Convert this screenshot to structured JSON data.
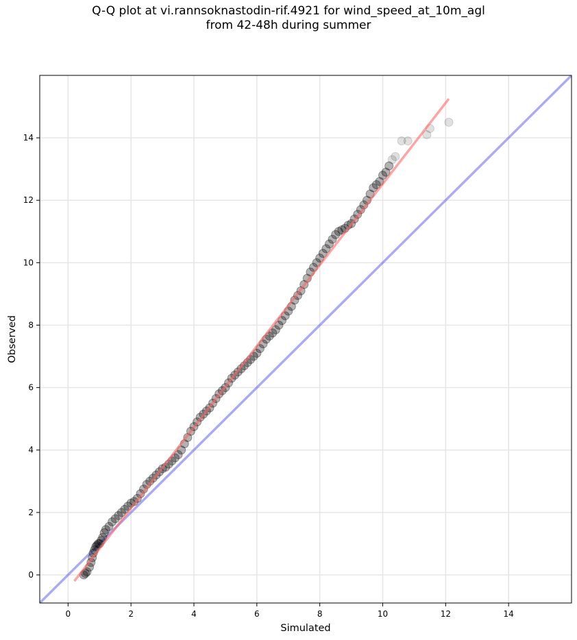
{
  "chart_data": {
    "type": "scatter",
    "title_line1": "Q-Q plot at vi.rannsoknastodin-rif.4921 for wind_speed_at_10m_agl",
    "title_line2": "from 42-48h during summer",
    "xlabel": "Simulated",
    "ylabel": "Observed",
    "xlim": [
      -0.9,
      16.0
    ],
    "ylim": [
      -0.9,
      16.0
    ],
    "xticks": [
      0,
      2,
      4,
      6,
      8,
      10,
      12,
      14
    ],
    "yticks": [
      0,
      2,
      4,
      6,
      8,
      10,
      12,
      14
    ],
    "grid": true,
    "colors": {
      "points": "#000000",
      "fit_line": "#ff6666",
      "identity_line": "#5555ee",
      "grid": "#e6e6e6"
    },
    "quantile_points": {
      "x": [
        0.5,
        0.55,
        0.6,
        0.68,
        0.73,
        0.77,
        0.8,
        0.84,
        0.88,
        0.92,
        0.96,
        1.0,
        1.05,
        1.1,
        1.15,
        1.2,
        1.3,
        1.4,
        1.5,
        1.6,
        1.7,
        1.8,
        1.9,
        2.0,
        2.1,
        2.2,
        2.3,
        2.4,
        2.5,
        2.6,
        2.7,
        2.8,
        2.9,
        3.0,
        3.1,
        3.2,
        3.3,
        3.4,
        3.5,
        3.6,
        3.7,
        3.8,
        3.9,
        4.0,
        4.1,
        4.2,
        4.3,
        4.4,
        4.5,
        4.6,
        4.7,
        4.8,
        4.9,
        5.0,
        5.1,
        5.2,
        5.3,
        5.4,
        5.5,
        5.6,
        5.7,
        5.8,
        5.9,
        6.0,
        6.1,
        6.2,
        6.3,
        6.4,
        6.5,
        6.6,
        6.7,
        6.8,
        6.9,
        7.0,
        7.1,
        7.2,
        7.3,
        7.4,
        7.5,
        7.6,
        7.7,
        7.8,
        7.9,
        8.0,
        8.1,
        8.2,
        8.3,
        8.4,
        8.5,
        8.6,
        8.7,
        8.8,
        8.9,
        9.0,
        9.1,
        9.2,
        9.3,
        9.4,
        9.5,
        9.6,
        9.7,
        9.8,
        9.9,
        10.0,
        10.1,
        10.2,
        10.3,
        10.4,
        10.6,
        10.8,
        11.4,
        11.5,
        12.1
      ],
      "y": [
        0.0,
        0.05,
        0.1,
        0.25,
        0.4,
        0.55,
        0.7,
        0.8,
        0.9,
        0.95,
        1.0,
        1.0,
        1.1,
        1.2,
        1.35,
        1.45,
        1.55,
        1.7,
        1.8,
        1.9,
        2.0,
        2.1,
        2.2,
        2.3,
        2.35,
        2.45,
        2.6,
        2.75,
        2.9,
        3.0,
        3.1,
        3.2,
        3.3,
        3.4,
        3.45,
        3.55,
        3.65,
        3.75,
        3.85,
        4.0,
        4.2,
        4.4,
        4.6,
        4.75,
        4.9,
        5.05,
        5.15,
        5.25,
        5.35,
        5.5,
        5.65,
        5.8,
        5.9,
        6.0,
        6.15,
        6.3,
        6.4,
        6.5,
        6.6,
        6.7,
        6.8,
        6.9,
        7.0,
        7.1,
        7.25,
        7.4,
        7.55,
        7.65,
        7.75,
        7.85,
        8.0,
        8.15,
        8.3,
        8.45,
        8.6,
        8.8,
        8.95,
        9.1,
        9.3,
        9.5,
        9.7,
        9.85,
        10.0,
        10.15,
        10.3,
        10.45,
        10.6,
        10.75,
        10.9,
        11.0,
        11.05,
        11.1,
        11.2,
        11.25,
        11.4,
        11.55,
        11.7,
        11.85,
        12.0,
        12.2,
        12.4,
        12.5,
        12.6,
        12.8,
        12.9,
        13.1,
        13.3,
        13.4,
        13.9,
        13.9,
        14.1,
        14.3,
        14.5
      ]
    },
    "fit_line": {
      "x": [
        0.2,
        12.1
      ],
      "y": [
        -0.2,
        15.25
      ]
    },
    "identity_line": {
      "x": [
        -0.9,
        16.0
      ],
      "y": [
        -0.9,
        16.0
      ]
    }
  }
}
